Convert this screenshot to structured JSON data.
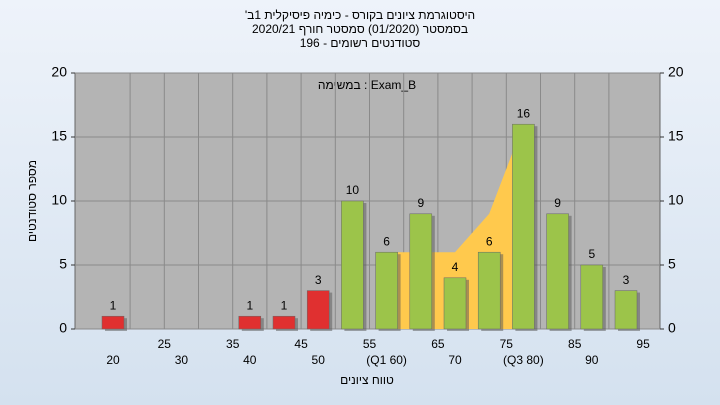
{
  "chart_data": {
    "type": "bar",
    "title": [
      "'היסטוגרמת ציונים בקורס - כימיה פיסיקלית 1ב",
      "בסמסטר (01/2020) סמסטר חורף 2020/21",
      "סטודנטים רשומים - 196"
    ],
    "annotation": "במשימה : Exam_B",
    "y_label": "מספר סטודנטים",
    "x_label": "טווח ציונים",
    "categories": [
      "20",
      "25",
      "30",
      "35",
      "40",
      "45",
      "50",
      "55",
      "(Q1 60)",
      "65",
      "70",
      "75",
      "(Q3 80)",
      "85",
      "90",
      "95"
    ],
    "values": [
      1,
      0,
      0,
      0,
      1,
      1,
      3,
      10,
      6,
      9,
      4,
      6,
      16,
      9,
      5,
      3
    ],
    "colors": [
      "#e03030",
      "#e03030",
      "#e03030",
      "#e03030",
      "#e03030",
      "#e03030",
      "#e03030",
      "#9cc44a",
      "#9cc44a",
      "#9cc44a",
      "#9cc44a",
      "#9cc44a",
      "#9cc44a",
      "#9cc44a",
      "#9cc44a",
      "#9cc44a"
    ],
    "area": {
      "color": "#ffc94d",
      "values": [
        null,
        null,
        null,
        null,
        null,
        null,
        null,
        null,
        6,
        6,
        6,
        9,
        16,
        null,
        null,
        null
      ]
    },
    "ylim": [
      0,
      20
    ],
    "yticks": [
      0,
      5,
      10,
      15,
      20
    ],
    "grid": true
  }
}
